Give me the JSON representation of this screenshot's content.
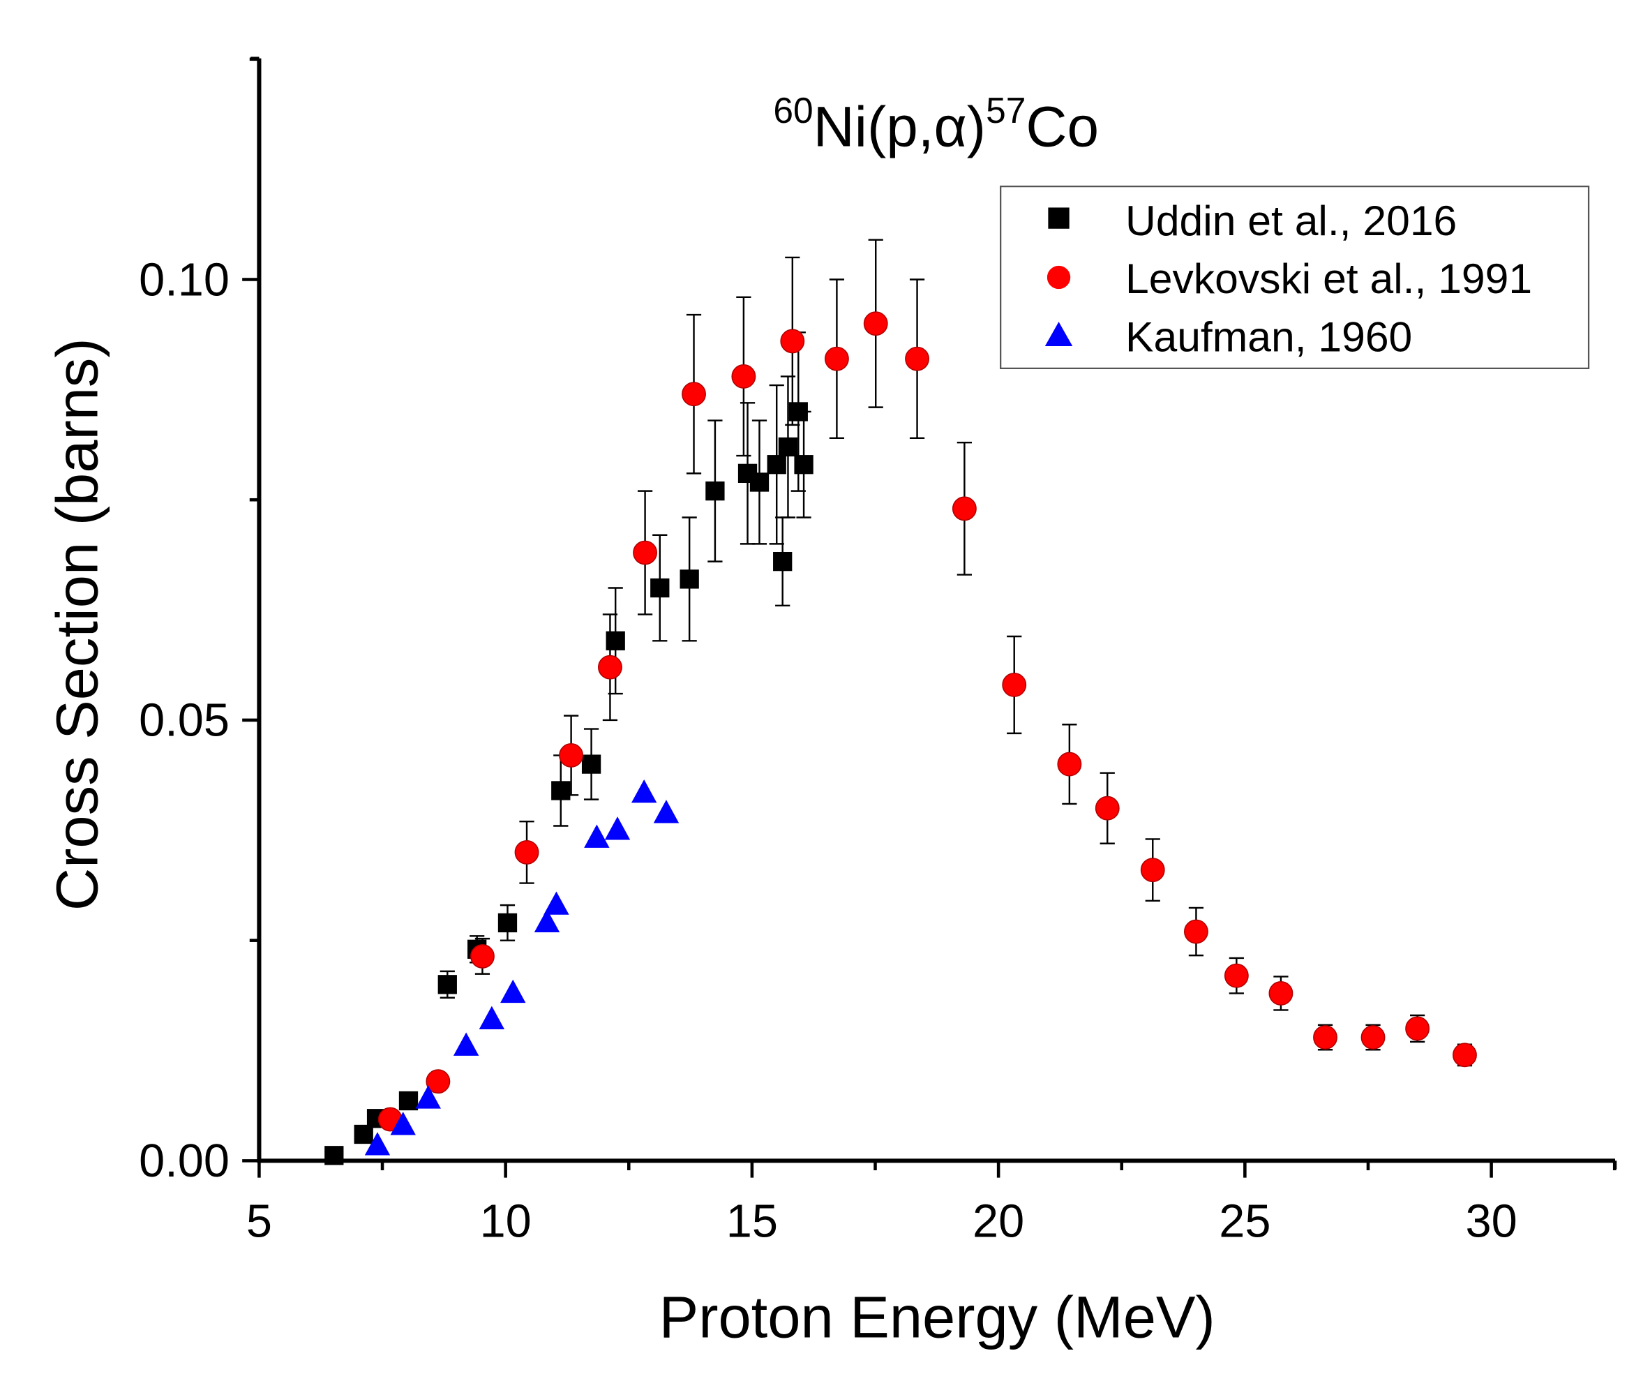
{
  "chart_data": {
    "type": "scatter",
    "title_parts": {
      "mass_target": "60",
      "reaction": "Ni(p,α)",
      "mass_product": "57",
      "product": "Co"
    },
    "xlabel": "Proton Energy (MeV)",
    "ylabel": "Cross Section (barns)",
    "xlim": [
      5,
      32.5
    ],
    "ylim": [
      0,
      0.126
    ],
    "xticks": [
      "5",
      "10",
      "15",
      "20",
      "25",
      "30"
    ],
    "xtick_values": [
      5,
      10,
      15,
      20,
      25,
      30
    ],
    "yticks": [
      "0.00",
      "0.05",
      "0.10"
    ],
    "ytick_values": [
      0,
      0.05,
      0.1
    ],
    "grid": false,
    "legend_position": "top-right",
    "series": [
      {
        "name": "Uddin et al., 2016",
        "marker": "square",
        "color": "#000000",
        "points": [
          [
            6.52,
            0.0006,
            0
          ],
          [
            7.12,
            0.003,
            0
          ],
          [
            7.38,
            0.0048,
            0
          ],
          [
            8.03,
            0.0068,
            0
          ],
          [
            8.82,
            0.02,
            0.0015
          ],
          [
            9.42,
            0.024,
            0.0015
          ],
          [
            10.04,
            0.027,
            0.002
          ],
          [
            11.12,
            0.042,
            0.004
          ],
          [
            11.74,
            0.045,
            0.004
          ],
          [
            12.23,
            0.059,
            0.006
          ],
          [
            13.13,
            0.065,
            0.006
          ],
          [
            13.73,
            0.066,
            0.007
          ],
          [
            14.25,
            0.076,
            0.008
          ],
          [
            14.91,
            0.078,
            0.008
          ],
          [
            15.15,
            0.077,
            0.007
          ],
          [
            15.62,
            0.068,
            0.005
          ],
          [
            15.5,
            0.079,
            0.009
          ],
          [
            15.73,
            0.081,
            0.008
          ],
          [
            15.94,
            0.085,
            0.009
          ],
          [
            16.05,
            0.079,
            0.006
          ]
        ]
      },
      {
        "name": "Levkovski et al., 1991",
        "marker": "circle",
        "color": "#ff0000",
        "points": [
          [
            7.66,
            0.0047,
            0
          ],
          [
            8.63,
            0.009,
            0
          ],
          [
            9.53,
            0.0232,
            0.002
          ],
          [
            10.43,
            0.035,
            0.0035
          ],
          [
            11.33,
            0.046,
            0.0045
          ],
          [
            12.12,
            0.056,
            0.006
          ],
          [
            12.83,
            0.069,
            0.007
          ],
          [
            13.82,
            0.087,
            0.009
          ],
          [
            14.83,
            0.089,
            0.009
          ],
          [
            15.82,
            0.093,
            0.0095
          ],
          [
            16.72,
            0.091,
            0.009
          ],
          [
            17.51,
            0.095,
            0.0095
          ],
          [
            18.35,
            0.091,
            0.009
          ],
          [
            19.31,
            0.074,
            0.0075
          ],
          [
            20.32,
            0.054,
            0.0055
          ],
          [
            21.44,
            0.045,
            0.0045
          ],
          [
            22.21,
            0.04,
            0.004
          ],
          [
            23.13,
            0.033,
            0.0035
          ],
          [
            24.01,
            0.026,
            0.0027
          ],
          [
            24.83,
            0.021,
            0.002
          ],
          [
            25.73,
            0.019,
            0.0019
          ],
          [
            26.63,
            0.014,
            0.0014
          ],
          [
            27.6,
            0.014,
            0.0014
          ],
          [
            28.5,
            0.015,
            0.0015
          ],
          [
            29.46,
            0.012,
            0.0012
          ]
        ]
      },
      {
        "name": "Kaufman, 1960",
        "marker": "triangle",
        "color": "#0000ff",
        "points": [
          [
            7.4,
            0.0017,
            0
          ],
          [
            7.92,
            0.004,
            0
          ],
          [
            8.43,
            0.007,
            0
          ],
          [
            9.2,
            0.013,
            0
          ],
          [
            9.72,
            0.016,
            0
          ],
          [
            10.15,
            0.019,
            0
          ],
          [
            10.84,
            0.027,
            0
          ],
          [
            11.03,
            0.029,
            0
          ],
          [
            11.85,
            0.0366,
            0
          ],
          [
            12.27,
            0.0375,
            0
          ],
          [
            12.81,
            0.0417,
            0
          ],
          [
            13.26,
            0.0394,
            0
          ]
        ]
      }
    ]
  }
}
